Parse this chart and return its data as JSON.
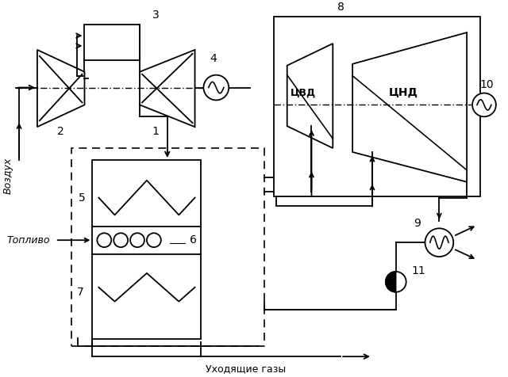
{
  "bg_color": "#ffffff",
  "lc": "#000000",
  "labels": {
    "vozdukh": "Воздух",
    "toplivo": "Топливо",
    "ukhodyashchie": "Уходящие газы",
    "1": "1",
    "2": "2",
    "3": "3",
    "4": "4",
    "5": "5",
    "6": "6",
    "7": "7",
    "8": "8",
    "9": "9",
    "10": "10",
    "11": "11",
    "cvd": "ЦВД",
    "cnd": "ЦНД"
  },
  "figsize": [
    6.4,
    4.76
  ],
  "dpi": 100
}
